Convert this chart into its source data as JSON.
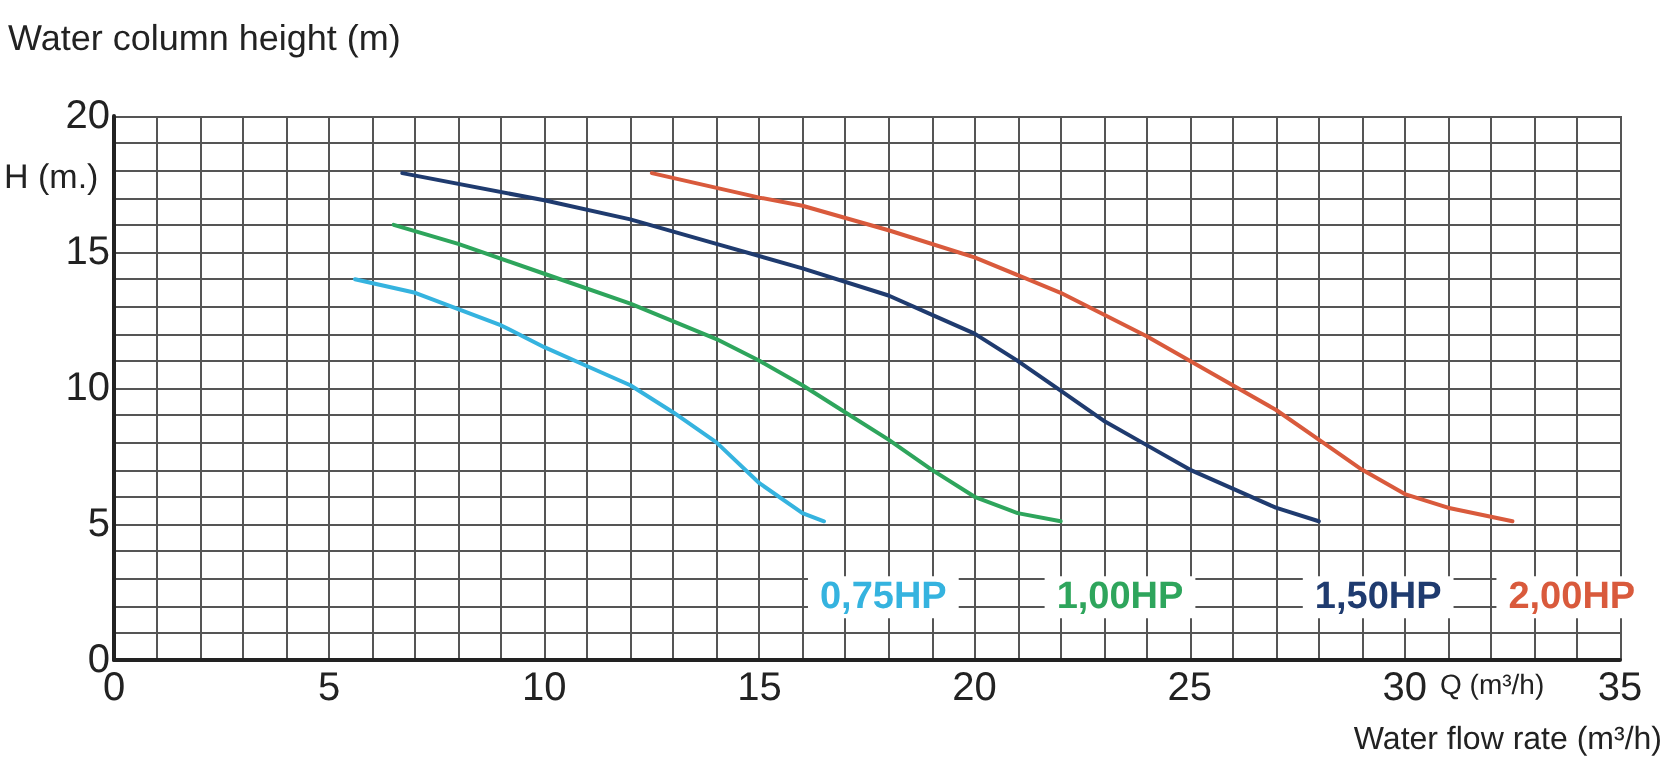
{
  "chart_data": {
    "type": "line",
    "title": "Water column height (m)",
    "ylabel": "H (m.)",
    "xlabel": "Q (m³/h)",
    "annotations": [
      "Water flow rate (m³/h)"
    ],
    "xlim": [
      0,
      35
    ],
    "xticks": [
      0,
      {
        "value": 1,
        "label": null
      },
      {
        "value": 2,
        "label": null
      },
      {
        "value": 3,
        "label": null
      },
      {
        "value": 4,
        "label": null
      },
      5,
      {
        "value": 6,
        "label": null
      },
      {
        "value": 7,
        "label": null
      },
      {
        "value": 8,
        "label": null
      },
      {
        "value": 9,
        "label": null
      },
      10,
      {
        "value": 11,
        "label": null
      },
      {
        "value": 12,
        "label": null
      },
      {
        "value": 13,
        "label": null
      },
      {
        "value": 14,
        "label": null
      },
      15,
      {
        "value": 16,
        "label": null
      },
      {
        "value": 17,
        "label": null
      },
      {
        "value": 18,
        "label": null
      },
      {
        "value": 19,
        "label": null
      },
      20,
      {
        "value": 21,
        "label": null
      },
      {
        "value": 22,
        "label": null
      },
      {
        "value": 23,
        "label": null
      },
      {
        "value": 24,
        "label": null
      },
      25,
      {
        "value": 26,
        "label": null
      },
      {
        "value": 27,
        "label": null
      },
      {
        "value": 28,
        "label": null
      },
      {
        "value": 29,
        "label": null
      },
      30,
      {
        "value": 31,
        "label": null
      },
      {
        "value": 32,
        "label": null
      },
      {
        "value": 33,
        "label": null
      },
      {
        "value": 34,
        "label": null
      },
      35
    ],
    "ylim": [
      0,
      20
    ],
    "yticks": [
      0,
      {
        "value": 1,
        "label": null
      },
      {
        "value": 2,
        "label": null
      },
      {
        "value": 3,
        "label": null
      },
      {
        "value": 4,
        "label": null
      },
      5,
      {
        "value": 6,
        "label": null
      },
      {
        "value": 7,
        "label": null
      },
      {
        "value": 8,
        "label": null
      },
      {
        "value": 9,
        "label": null
      },
      10,
      {
        "value": 11,
        "label": null
      },
      {
        "value": 12,
        "label": null
      },
      {
        "value": 13,
        "label": null
      },
      {
        "value": 14,
        "label": null
      },
      15,
      {
        "value": 16,
        "label": null
      },
      {
        "value": 17,
        "label": null
      },
      {
        "value": 18,
        "label": null
      },
      {
        "value": 19,
        "label": null
      },
      20
    ],
    "grid": true,
    "legend": false,
    "marker": "none",
    "line_style": "solid",
    "series": [
      {
        "name": "0,75HP",
        "color": "#35b3df",
        "x": [
          5.6,
          7,
          9,
          10,
          11,
          12,
          13,
          14,
          15,
          16,
          16.5
        ],
        "values": [
          14,
          13.5,
          12.3,
          11.5,
          10.8,
          10.1,
          9.1,
          8,
          6.5,
          5.4,
          5.1
        ]
      },
      {
        "name": "1,00HP",
        "color": "#2ea55c",
        "x": [
          6.5,
          8,
          10,
          12,
          14,
          15,
          16,
          17,
          18,
          19,
          20,
          21,
          22
        ],
        "values": [
          16,
          15.3,
          14.2,
          13.1,
          11.8,
          11,
          10.1,
          9.1,
          8.1,
          7,
          6,
          5.4,
          5.1
        ]
      },
      {
        "name": "1,50HP",
        "color": "#1f3b6f",
        "x": [
          6.7,
          10,
          12,
          14,
          16,
          18,
          19,
          20,
          21,
          22,
          23,
          24,
          25,
          26,
          27,
          28
        ],
        "values": [
          17.9,
          16.9,
          16.2,
          15.3,
          14.4,
          13.4,
          12.7,
          12,
          11,
          9.9,
          8.8,
          7.9,
          7,
          6.3,
          5.6,
          5.1
        ]
      },
      {
        "name": "2,00HP",
        "color": "#d95a3c",
        "x": [
          12.5,
          15,
          16,
          18,
          20,
          22,
          24,
          26,
          27,
          28,
          29,
          30,
          31,
          32.5
        ],
        "values": [
          17.9,
          17,
          16.7,
          15.8,
          14.8,
          13.5,
          11.9,
          10.1,
          9.2,
          8.1,
          7,
          6.1,
          5.6,
          5.1
        ]
      }
    ]
  }
}
